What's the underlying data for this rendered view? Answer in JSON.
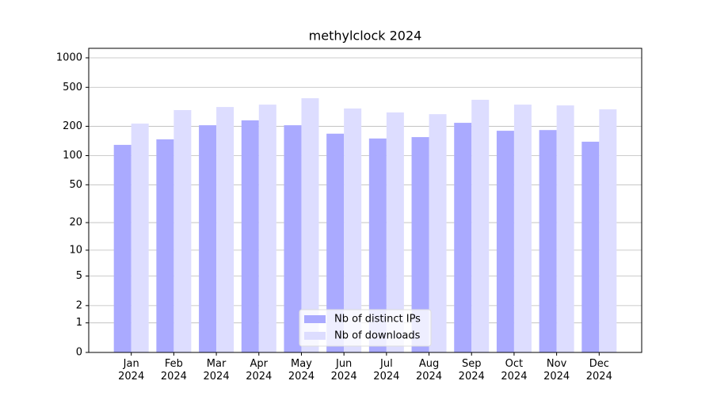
{
  "chart_data": {
    "type": "bar",
    "title": "methylclock 2024",
    "categories": [
      "Jan\n2024",
      "Feb\n2024",
      "Mar\n2024",
      "Apr\n2024",
      "May\n2024",
      "Jun\n2024",
      "Jul\n2024",
      "Aug\n2024",
      "Sep\n2024",
      "Oct\n2024",
      "Nov\n2024",
      "Dec\n2024"
    ],
    "series": [
      {
        "name": "Nb of distinct IPs",
        "color": "#aaaaff",
        "values": [
          129,
          147,
          205,
          230,
          205,
          168,
          150,
          155,
          217,
          180,
          183,
          139
        ]
      },
      {
        "name": "Nb of downloads",
        "color": "#ddddff",
        "values": [
          213,
          293,
          315,
          333,
          387,
          304,
          277,
          266,
          373,
          333,
          327,
          298
        ]
      }
    ],
    "yscale": "log1p",
    "ylim": [
      0,
      1250
    ],
    "yticks": [
      0,
      1,
      2,
      5,
      10,
      20,
      50,
      100,
      200,
      500,
      1000
    ],
    "grid": true,
    "legend": "lower center"
  }
}
